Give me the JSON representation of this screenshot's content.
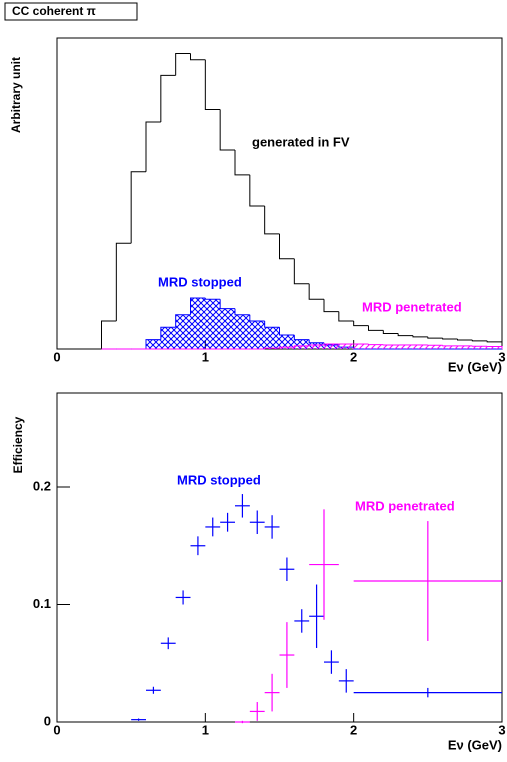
{
  "chart_data": [
    {
      "type": "histogram",
      "title": "CC coherent π",
      "xlabel": "Eν (GeV)",
      "ylabel": "Arbitrary unit",
      "xlim": [
        0,
        3
      ],
      "xticks": [
        0,
        1,
        2,
        3
      ],
      "ylim": [
        0,
        100
      ],
      "bins": [
        0.3,
        0.4,
        0.5,
        0.6,
        0.7,
        0.8,
        0.9,
        1.0,
        1.1,
        1.2,
        1.3,
        1.4,
        1.5,
        1.6,
        1.7,
        1.8,
        1.9,
        2.0,
        2.1,
        2.2,
        2.3,
        2.4,
        2.5,
        2.6,
        2.7,
        2.8,
        2.9,
        3.0
      ],
      "series": [
        {
          "name": "generated in FV",
          "color": "#000000",
          "fill": "none",
          "values": [
            9,
            34,
            57,
            73,
            88,
            95,
            93,
            77,
            64,
            56,
            46,
            37,
            29,
            21,
            16,
            12,
            9,
            7.5,
            6,
            5,
            4.3,
            3.9,
            3.5,
            3.2,
            2.9,
            2.6,
            2.3
          ]
        },
        {
          "name": "MRD stopped",
          "color": "#0000ff",
          "fill": "hatch",
          "values": [
            0,
            0,
            0,
            3,
            7,
            11,
            16.4,
            16,
            13,
            11,
            9,
            7,
            4.5,
            3,
            2,
            1.3,
            0.6,
            0,
            0,
            0,
            0,
            0,
            0,
            0,
            0,
            0,
            0
          ]
        },
        {
          "name": "MRD penetrated",
          "color": "#ff00ff",
          "fill": "hatch",
          "values": [
            0,
            0,
            0,
            0,
            0,
            0,
            0,
            0,
            0,
            0,
            0,
            0.3,
            0.6,
            1,
            1.3,
            1.6,
            1.6,
            1.6,
            1.4,
            1.3,
            1.3,
            1.3,
            1.2,
            1,
            1,
            0.9,
            0.8
          ]
        }
      ]
    },
    {
      "type": "errorbar",
      "xlabel": "Eν (GeV)",
      "ylabel": "Efficiency",
      "xlim": [
        0,
        3
      ],
      "xticks": [
        0,
        1,
        2,
        3
      ],
      "ylim": [
        0,
        0.28
      ],
      "yticks": [
        0,
        0.1,
        0.2
      ],
      "series": [
        {
          "name": "MRD stopped",
          "color": "#0000ff",
          "x": [
            0.55,
            0.65,
            0.75,
            0.85,
            0.95,
            1.05,
            1.15,
            1.25,
            1.35,
            1.45,
            1.55,
            1.65,
            1.75,
            1.85,
            1.95,
            2.5
          ],
          "values": [
            0.002,
            0.027,
            0.067,
            0.106,
            0.15,
            0.166,
            0.17,
            0.184,
            0.17,
            0.166,
            0.13,
            0.086,
            0.09,
            0.051,
            0.035,
            0.025
          ],
          "xerr": [
            0.05,
            0.05,
            0.05,
            0.05,
            0.05,
            0.05,
            0.05,
            0.05,
            0.05,
            0.05,
            0.05,
            0.05,
            0.05,
            0.05,
            0.05,
            0.5
          ],
          "yerr": [
            0.001,
            0.003,
            0.005,
            0.006,
            0.008,
            0.008,
            0.008,
            0.01,
            0.01,
            0.01,
            0.01,
            0.01,
            0.027,
            0.01,
            0.01,
            0.004
          ]
        },
        {
          "name": "MRD penetrated",
          "color": "#ff00ff",
          "x": [
            1.25,
            1.35,
            1.45,
            1.55,
            1.8,
            2.5
          ],
          "values": [
            0,
            0.009,
            0.025,
            0.057,
            0.134,
            0.12
          ],
          "xerr": [
            0.05,
            0.05,
            0.05,
            0.05,
            0.1,
            0.5
          ],
          "yerr": [
            0.001,
            0.008,
            0.016,
            0.028,
            0.047,
            0.051
          ]
        }
      ]
    }
  ]
}
